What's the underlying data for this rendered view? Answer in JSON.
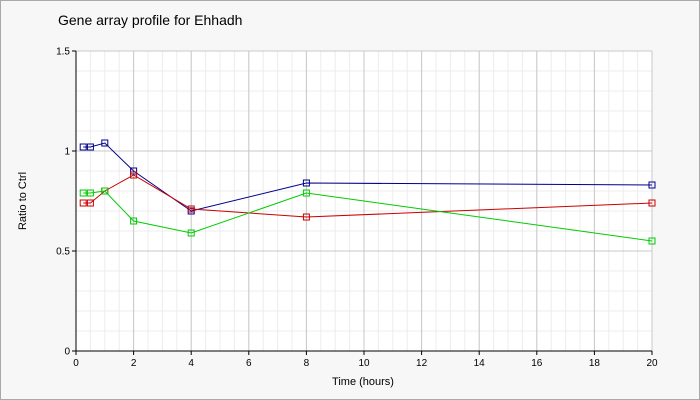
{
  "chart_data": {
    "type": "line",
    "title": "Gene array profile for Ehhadh",
    "xlabel": "Time (hours)",
    "ylabel": "Ratio to Ctrl",
    "xlim": [
      0,
      20
    ],
    "ylim": [
      0,
      1.5
    ],
    "x_ticks": [
      "0",
      "2",
      "4",
      "6",
      "8",
      "10",
      "12",
      "14",
      "16",
      "18",
      "20"
    ],
    "y_ticks": [
      "0",
      "0.5",
      "1",
      "1.5"
    ],
    "grid": true,
    "legend": "none",
    "marker": "open-square",
    "series": [
      {
        "color": "#00008b",
        "points": [
          [
            0.25,
            1.02
          ],
          [
            0.5,
            1.02
          ],
          [
            1,
            1.04
          ],
          [
            2,
            0.9
          ],
          [
            4,
            0.7
          ],
          [
            8,
            0.84
          ],
          [
            20,
            0.83
          ]
        ]
      },
      {
        "color": "#cc0000",
        "points": [
          [
            0.25,
            0.74
          ],
          [
            0.5,
            0.74
          ],
          [
            1,
            0.8
          ],
          [
            2,
            0.88
          ],
          [
            4,
            0.71
          ],
          [
            8,
            0.67
          ],
          [
            20,
            0.74
          ]
        ]
      },
      {
        "color": "#00cc00",
        "points": [
          [
            0.25,
            0.79
          ],
          [
            0.5,
            0.79
          ],
          [
            1,
            0.8
          ],
          [
            2,
            0.65
          ],
          [
            4,
            0.59
          ],
          [
            8,
            0.79
          ],
          [
            20,
            0.55
          ]
        ]
      }
    ]
  }
}
